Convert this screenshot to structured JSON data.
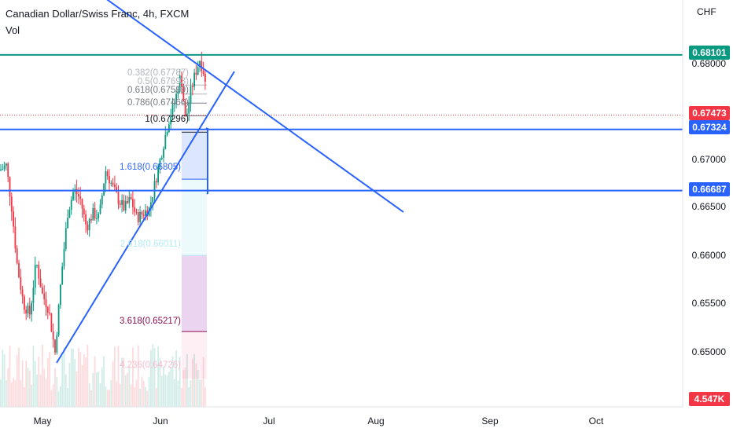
{
  "header": {
    "title": "Canadian Dollar/Swiss Franc, 4h, FXCM",
    "volume_label": "Vol",
    "currency": "CHF"
  },
  "axis": {
    "y_ticks": [
      "0.68000",
      "0.67000",
      "0.66500",
      "0.66000",
      "0.65500",
      "0.65000"
    ],
    "x_ticks": [
      "May",
      "Jun",
      "Jul",
      "Aug",
      "Sep",
      "Oct"
    ]
  },
  "price_tags": [
    {
      "label": "0.68101",
      "color": "#089981"
    },
    {
      "label": "0.67473",
      "color": "#f23645"
    },
    {
      "label": "0.67324",
      "color": "#2962ff"
    },
    {
      "label": "0.66687",
      "color": "#2962ff"
    },
    {
      "label": "4.547K",
      "color": "#f23645"
    }
  ],
  "fib_labels": [
    {
      "text": "0.382(0.67787)",
      "color": "#b2b5be"
    },
    {
      "text": "0.5(0.67693)",
      "color": "#b2b5be"
    },
    {
      "text": "0.618(0.67599)",
      "color": "#787b86"
    },
    {
      "text": "0.786(0.67466)",
      "color": "#787b86"
    },
    {
      "text": "1(0.67296)",
      "color": "#131722"
    },
    {
      "text": "1.618(0.66805)",
      "color": "#2962ff"
    },
    {
      "text": "2.618(0.66011)",
      "color": "#b2ebf2"
    },
    {
      "text": "3.618(0.65217)",
      "color": "#880e4f"
    },
    {
      "text": "4.236(0.64726)",
      "color": "#f8bbd0"
    }
  ],
  "chart_data": {
    "type": "candlestick",
    "symbol": "CADCHF",
    "interval": "4h",
    "ylim": [
      0.6455,
      0.6825
    ],
    "horizontal_levels": [
      0.68101,
      0.67324,
      0.66687
    ],
    "last_price": 0.67473,
    "last_volume": "4.547K",
    "colors": {
      "up": "#089981",
      "down": "#f23645",
      "trendline": "#2962ff"
    }
  }
}
